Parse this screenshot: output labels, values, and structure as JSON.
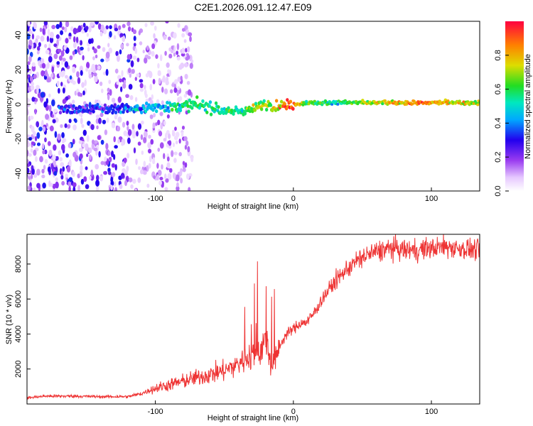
{
  "figure": {
    "title": "C2E1.2026.091.12.47.E09"
  },
  "chart_data": [
    {
      "type": "heatmap",
      "name": "spectrogram",
      "title": "C2E1.2026.091.12.47.E09",
      "xlabel": "Height of straight line (km)",
      "ylabel": "Frequency (Hz)",
      "xlim": [
        -193,
        135
      ],
      "ylim": [
        -50,
        48
      ],
      "xticks": [
        -100,
        0,
        100
      ],
      "yticks": [
        -40,
        -20,
        0,
        20,
        40
      ],
      "ridge": {
        "description": "dominant spectral band near 0 Hz",
        "x": [
          -170,
          -140,
          -110,
          -90,
          -70,
          -60,
          -50,
          -40,
          -30,
          -20,
          -10,
          0,
          10,
          30,
          60,
          90,
          120,
          135
        ],
        "frequency": [
          -3,
          -3,
          -2,
          -1,
          0,
          -2,
          -4,
          -4,
          -3,
          0,
          -1,
          0,
          1,
          1,
          1,
          1,
          1,
          1
        ],
        "amplitude": [
          0.3,
          0.3,
          0.4,
          0.5,
          0.55,
          0.6,
          0.55,
          0.55,
          0.65,
          0.7,
          0.8,
          0.95,
          0.6,
          0.55,
          0.7,
          0.85,
          0.75,
          0.7
        ]
      },
      "colorbar": {
        "label": "Normalized spectral amplitude",
        "range": [
          0,
          1
        ],
        "ticks": [
          "0.0",
          "0.2",
          "0.4",
          "0.6",
          "0.8"
        ]
      }
    },
    {
      "type": "line",
      "name": "snr",
      "xlabel": "Height of straight line (km)",
      "ylabel": "SNR (10 * v/v)",
      "xlim": [
        -193,
        135
      ],
      "ylim": [
        0,
        9700
      ],
      "xticks": [
        -100,
        0,
        100
      ],
      "yticks": [
        2000,
        4000,
        6000,
        8000
      ],
      "color": "#ee3333",
      "x": [
        -193,
        -180,
        -160,
        -140,
        -120,
        -110,
        -100,
        -90,
        -80,
        -70,
        -60,
        -50,
        -40,
        -35,
        -30,
        -25,
        -20,
        -15,
        -10,
        -5,
        0,
        5,
        10,
        15,
        20,
        30,
        40,
        50,
        60,
        70,
        80,
        90,
        100,
        110,
        120,
        135
      ],
      "y": [
        350,
        450,
        450,
        420,
        420,
        600,
        900,
        1100,
        1300,
        1500,
        1700,
        1900,
        2300,
        2600,
        2800,
        3000,
        3600,
        2000,
        3300,
        4000,
        4300,
        4600,
        4700,
        5200,
        5900,
        7000,
        7800,
        8400,
        8700,
        8900,
        8800,
        8800,
        8900,
        9000,
        8900,
        8800
      ]
    }
  ]
}
